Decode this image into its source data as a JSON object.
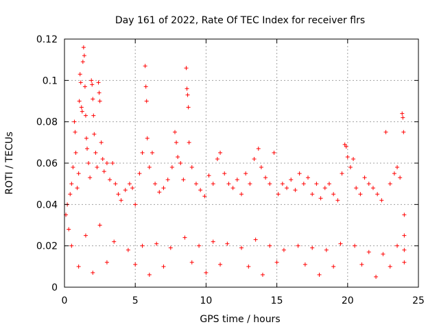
{
  "chart_data": {
    "type": "scatter",
    "title": "Day 161 of 2022, Rate Of TEC Index for receiver flrs",
    "xlabel": "GPS time / hours",
    "ylabel": "ROTI / TECUs",
    "xlim": [
      0,
      25
    ],
    "ylim": [
      0,
      0.12
    ],
    "x_ticks": [
      0,
      5,
      10,
      15,
      20,
      25
    ],
    "x_tick_labels": [
      "0",
      "5",
      "10",
      "15",
      "20",
      "25"
    ],
    "y_ticks": [
      0,
      0.02,
      0.04,
      0.06,
      0.08,
      0.1,
      0.12
    ],
    "y_tick_labels": [
      "0",
      "0.02",
      "0.04",
      "0.06",
      "0.08",
      "0.1",
      "0.12"
    ],
    "grid": true,
    "marker": "+",
    "color": "#ff0000",
    "series": [
      {
        "name": "",
        "points": [
          [
            0.1,
            0.035
          ],
          [
            0.2,
            0.04
          ],
          [
            0.3,
            0.028
          ],
          [
            0.4,
            0.045
          ],
          [
            0.5,
            0.05
          ],
          [
            0.6,
            0.058
          ],
          [
            0.7,
            0.08
          ],
          [
            0.75,
            0.075
          ],
          [
            0.8,
            0.065
          ],
          [
            0.9,
            0.048
          ],
          [
            1.0,
            0.055
          ],
          [
            1.05,
            0.09
          ],
          [
            1.1,
            0.103
          ],
          [
            1.15,
            0.099
          ],
          [
            1.2,
            0.087
          ],
          [
            1.25,
            0.085
          ],
          [
            1.3,
            0.109
          ],
          [
            1.35,
            0.116
          ],
          [
            1.4,
            0.112
          ],
          [
            1.45,
            0.097
          ],
          [
            1.5,
            0.083
          ],
          [
            1.55,
            0.072
          ],
          [
            1.6,
            0.067
          ],
          [
            1.7,
            0.06
          ],
          [
            1.8,
            0.053
          ],
          [
            1.9,
            0.1
          ],
          [
            1.95,
            0.098
          ],
          [
            2.0,
            0.091
          ],
          [
            2.05,
            0.083
          ],
          [
            2.1,
            0.074
          ],
          [
            2.2,
            0.065
          ],
          [
            2.3,
            0.058
          ],
          [
            2.4,
            0.099
          ],
          [
            2.45,
            0.094
          ],
          [
            2.5,
            0.09
          ],
          [
            2.6,
            0.07
          ],
          [
            2.7,
            0.062
          ],
          [
            2.8,
            0.056
          ],
          [
            3.0,
            0.06
          ],
          [
            3.2,
            0.052
          ],
          [
            3.4,
            0.06
          ],
          [
            3.6,
            0.05
          ],
          [
            3.8,
            0.045
          ],
          [
            4.0,
            0.042
          ],
          [
            4.3,
            0.047
          ],
          [
            4.6,
            0.05
          ],
          [
            4.8,
            0.048
          ],
          [
            5.0,
            0.04
          ],
          [
            5.3,
            0.055
          ],
          [
            5.5,
            0.065
          ],
          [
            5.7,
            0.107
          ],
          [
            5.75,
            0.097
          ],
          [
            5.8,
            0.09
          ],
          [
            5.85,
            0.072
          ],
          [
            6.0,
            0.058
          ],
          [
            6.2,
            0.065
          ],
          [
            6.4,
            0.05
          ],
          [
            6.7,
            0.046
          ],
          [
            7.0,
            0.048
          ],
          [
            7.3,
            0.052
          ],
          [
            7.6,
            0.058
          ],
          [
            7.8,
            0.075
          ],
          [
            7.9,
            0.07
          ],
          [
            8.0,
            0.063
          ],
          [
            8.2,
            0.06
          ],
          [
            8.4,
            0.052
          ],
          [
            8.6,
            0.106
          ],
          [
            8.65,
            0.096
          ],
          [
            8.7,
            0.093
          ],
          [
            8.75,
            0.087
          ],
          [
            8.8,
            0.07
          ],
          [
            9.0,
            0.058
          ],
          [
            9.3,
            0.05
          ],
          [
            9.6,
            0.047
          ],
          [
            9.9,
            0.044
          ],
          [
            10.2,
            0.054
          ],
          [
            10.5,
            0.05
          ],
          [
            10.8,
            0.062
          ],
          [
            11.0,
            0.065
          ],
          [
            11.3,
            0.055
          ],
          [
            11.6,
            0.05
          ],
          [
            11.9,
            0.048
          ],
          [
            12.2,
            0.052
          ],
          [
            12.5,
            0.045
          ],
          [
            12.8,
            0.055
          ],
          [
            13.1,
            0.05
          ],
          [
            13.4,
            0.062
          ],
          [
            13.7,
            0.067
          ],
          [
            13.9,
            0.058
          ],
          [
            14.2,
            0.053
          ],
          [
            14.5,
            0.05
          ],
          [
            14.8,
            0.065
          ],
          [
            15.1,
            0.045
          ],
          [
            15.4,
            0.05
          ],
          [
            15.7,
            0.048
          ],
          [
            16.0,
            0.052
          ],
          [
            16.3,
            0.047
          ],
          [
            16.6,
            0.055
          ],
          [
            16.9,
            0.05
          ],
          [
            17.2,
            0.053
          ],
          [
            17.5,
            0.045
          ],
          [
            17.8,
            0.05
          ],
          [
            18.1,
            0.043
          ],
          [
            18.4,
            0.048
          ],
          [
            18.7,
            0.05
          ],
          [
            19.0,
            0.045
          ],
          [
            19.3,
            0.042
          ],
          [
            19.6,
            0.055
          ],
          [
            19.8,
            0.069
          ],
          [
            19.9,
            0.068
          ],
          [
            20.0,
            0.063
          ],
          [
            20.2,
            0.058
          ],
          [
            20.4,
            0.062
          ],
          [
            20.6,
            0.048
          ],
          [
            20.9,
            0.045
          ],
          [
            21.2,
            0.053
          ],
          [
            21.5,
            0.05
          ],
          [
            21.8,
            0.048
          ],
          [
            22.1,
            0.045
          ],
          [
            22.4,
            0.042
          ],
          [
            22.7,
            0.075
          ],
          [
            23.0,
            0.05
          ],
          [
            23.3,
            0.055
          ],
          [
            23.5,
            0.058
          ],
          [
            23.7,
            0.053
          ],
          [
            23.85,
            0.084
          ],
          [
            23.9,
            0.082
          ],
          [
            23.95,
            0.075
          ],
          [
            0.5,
            0.02
          ],
          [
            1.5,
            0.025
          ],
          [
            2.5,
            0.03
          ],
          [
            3.5,
            0.022
          ],
          [
            4.5,
            0.018
          ],
          [
            5.5,
            0.02
          ],
          [
            6.5,
            0.021
          ],
          [
            7.5,
            0.019
          ],
          [
            8.5,
            0.024
          ],
          [
            9.5,
            0.02
          ],
          [
            10.5,
            0.022
          ],
          [
            11.5,
            0.021
          ],
          [
            12.5,
            0.019
          ],
          [
            13.5,
            0.023
          ],
          [
            14.5,
            0.02
          ],
          [
            15.5,
            0.018
          ],
          [
            16.5,
            0.02
          ],
          [
            17.5,
            0.019
          ],
          [
            18.5,
            0.018
          ],
          [
            19.5,
            0.021
          ],
          [
            20.5,
            0.02
          ],
          [
            21.5,
            0.017
          ],
          [
            22.5,
            0.016
          ],
          [
            23.5,
            0.02
          ],
          [
            1.0,
            0.01
          ],
          [
            3.0,
            0.012
          ],
          [
            5.0,
            0.011
          ],
          [
            7.0,
            0.01
          ],
          [
            9.0,
            0.012
          ],
          [
            11.0,
            0.011
          ],
          [
            13.0,
            0.01
          ],
          [
            15.0,
            0.012
          ],
          [
            17.0,
            0.011
          ],
          [
            19.0,
            0.01
          ],
          [
            21.0,
            0.011
          ],
          [
            23.0,
            0.01
          ],
          [
            2.0,
            0.007
          ],
          [
            6.0,
            0.006
          ],
          [
            10.0,
            0.007
          ],
          [
            14.0,
            0.006
          ],
          [
            18.0,
            0.006
          ],
          [
            22.0,
            0.005
          ],
          [
            24.0,
            0.012
          ],
          [
            24.0,
            0.018
          ],
          [
            24.0,
            0.025
          ],
          [
            24.0,
            0.035
          ]
        ]
      }
    ]
  }
}
